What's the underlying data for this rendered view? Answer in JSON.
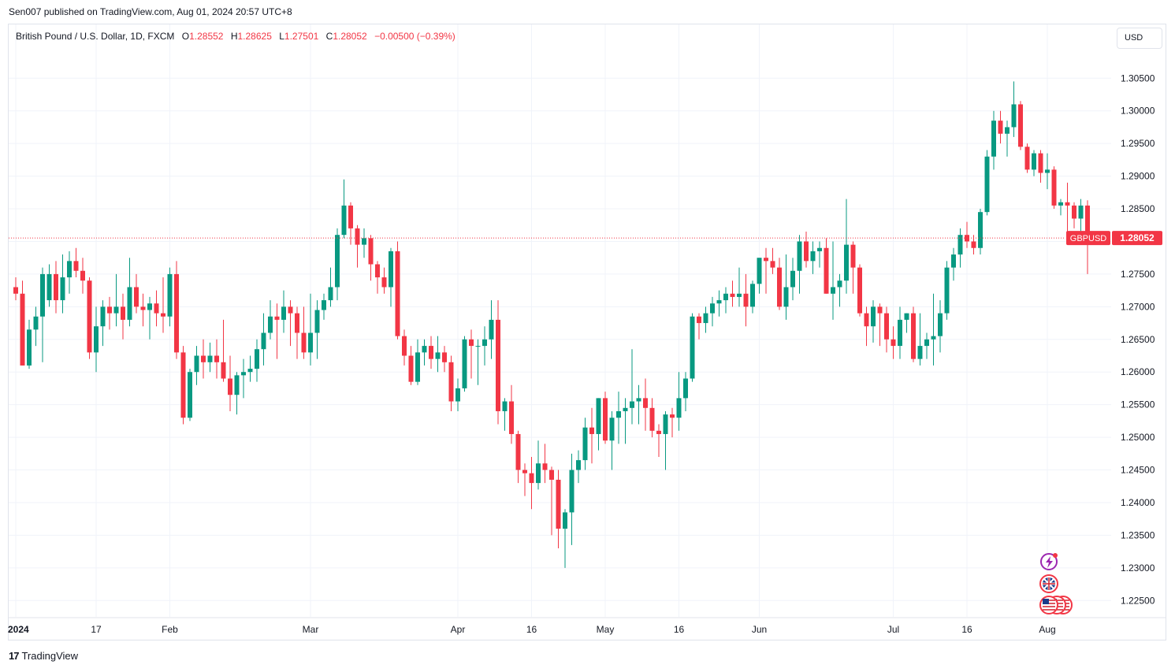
{
  "publisher": "Sen007 published on TradingView.com, Aug 01, 2024 20:57 UTC+8",
  "legend": {
    "symbol": "British Pound / U.S. Dollar, 1D, FXCM",
    "open_label": "O",
    "open": "1.28552",
    "high_label": "H",
    "high": "1.28625",
    "low_label": "L",
    "low": "1.27501",
    "close_label": "C",
    "close": "1.28052",
    "change": "−0.00500 (−0.39%)"
  },
  "currency": "USD",
  "footer": {
    "brand": "TradingView",
    "logo_mark": "17"
  },
  "colors": {
    "up": "#089981",
    "down": "#f23645",
    "grid": "#f0f3fa",
    "axis_text": "#131722",
    "price_line": "#f23645"
  },
  "icons": [
    "lightning-event-icon",
    "uk-flag-icon",
    "us-flag-icon"
  ],
  "chart_data": {
    "type": "candlestick",
    "symbol_tag": "GBPUSD",
    "last_price": 1.28052,
    "ylim": [
      1.2225,
      1.3095
    ],
    "y_ticks": [
      1.305,
      1.3,
      1.295,
      1.29,
      1.285,
      1.28,
      1.275,
      1.27,
      1.265,
      1.26,
      1.255,
      1.25,
      1.245,
      1.24,
      1.235,
      1.23,
      1.225
    ],
    "y_tick_labels": [
      "1.30500",
      "1.30000",
      "1.29500",
      "1.29000",
      "1.28500",
      "1.28000",
      "1.27500",
      "1.27000",
      "1.26500",
      "1.26000",
      "1.25500",
      "1.25000",
      "1.24500",
      "1.24000",
      "1.23500",
      "1.23000",
      "1.22500"
    ],
    "x_ticks": [
      {
        "label": "2024",
        "bar": 0,
        "bold": true
      },
      {
        "label": "17",
        "bar": 12
      },
      {
        "label": "Feb",
        "bar": 23
      },
      {
        "label": "Mar",
        "bar": 44
      },
      {
        "label": "Apr",
        "bar": 66
      },
      {
        "label": "16",
        "bar": 77
      },
      {
        "label": "May",
        "bar": 88
      },
      {
        "label": "16",
        "bar": 99
      },
      {
        "label": "Jun",
        "bar": 111
      },
      {
        "label": "Jul",
        "bar": 131
      },
      {
        "label": "16",
        "bar": 142
      },
      {
        "label": "Aug",
        "bar": 154
      }
    ],
    "grid": true,
    "candles": [
      [
        1.273,
        1.2745,
        1.271,
        1.272
      ],
      [
        1.272,
        1.274,
        1.261,
        1.261
      ],
      [
        1.261,
        1.268,
        1.2605,
        1.2665
      ],
      [
        1.2665,
        1.27,
        1.264,
        1.2685
      ],
      [
        1.2685,
        1.276,
        1.2615,
        1.275
      ],
      [
        1.271,
        1.2765,
        1.27,
        1.275
      ],
      [
        1.275,
        1.277,
        1.269,
        1.271
      ],
      [
        1.271,
        1.278,
        1.269,
        1.2745
      ],
      [
        1.2745,
        1.2785,
        1.272,
        1.277
      ],
      [
        1.277,
        1.279,
        1.2745,
        1.2755
      ],
      [
        1.2755,
        1.2775,
        1.272,
        1.274
      ],
      [
        1.274,
        1.2745,
        1.262,
        1.263
      ],
      [
        1.263,
        1.27,
        1.26,
        1.267
      ],
      [
        1.267,
        1.271,
        1.264,
        1.27
      ],
      [
        1.27,
        1.2715,
        1.2665,
        1.269
      ],
      [
        1.269,
        1.275,
        1.267,
        1.27
      ],
      [
        1.27,
        1.272,
        1.265,
        1.268
      ],
      [
        1.268,
        1.2775,
        1.267,
        1.273
      ],
      [
        1.273,
        1.275,
        1.269,
        1.27
      ],
      [
        1.27,
        1.272,
        1.267,
        1.2695
      ],
      [
        1.2695,
        1.2715,
        1.265,
        1.2705
      ],
      [
        1.2705,
        1.2725,
        1.267,
        1.269
      ],
      [
        1.269,
        1.2745,
        1.266,
        1.2685
      ],
      [
        1.2685,
        1.276,
        1.267,
        1.275
      ],
      [
        1.275,
        1.277,
        1.262,
        1.263
      ],
      [
        1.263,
        1.264,
        1.252,
        1.253
      ],
      [
        1.253,
        1.2605,
        1.2525,
        1.26
      ],
      [
        1.26,
        1.264,
        1.258,
        1.2625
      ],
      [
        1.2625,
        1.265,
        1.259,
        1.2615
      ],
      [
        1.2615,
        1.2645,
        1.26,
        1.2625
      ],
      [
        1.2625,
        1.265,
        1.259,
        1.2615
      ],
      [
        1.2615,
        1.268,
        1.2585,
        1.259
      ],
      [
        1.259,
        1.2625,
        1.254,
        1.2565
      ],
      [
        1.2565,
        1.26,
        1.2535,
        1.2595
      ],
      [
        1.2595,
        1.262,
        1.256,
        1.26
      ],
      [
        1.26,
        1.2625,
        1.2585,
        1.2605
      ],
      [
        1.2605,
        1.265,
        1.2585,
        1.2635
      ],
      [
        1.2635,
        1.269,
        1.261,
        1.266
      ],
      [
        1.266,
        1.271,
        1.265,
        1.2685
      ],
      [
        1.2685,
        1.2705,
        1.262,
        1.268
      ],
      [
        1.268,
        1.2725,
        1.266,
        1.27
      ],
      [
        1.27,
        1.271,
        1.264,
        1.269
      ],
      [
        1.269,
        1.27,
        1.262,
        1.266
      ],
      [
        1.266,
        1.27,
        1.262,
        1.263
      ],
      [
        1.263,
        1.272,
        1.261,
        1.266
      ],
      [
        1.266,
        1.271,
        1.262,
        1.2695
      ],
      [
        1.2695,
        1.272,
        1.268,
        1.271
      ],
      [
        1.271,
        1.276,
        1.27,
        1.273
      ],
      [
        1.273,
        1.282,
        1.271,
        1.281
      ],
      [
        1.281,
        1.2895,
        1.2805,
        1.2855
      ],
      [
        1.2855,
        1.286,
        1.2795,
        1.282
      ],
      [
        1.282,
        1.2825,
        1.276,
        1.2795
      ],
      [
        1.2795,
        1.282,
        1.2775,
        1.2805
      ],
      [
        1.2805,
        1.281,
        1.274,
        1.2765
      ],
      [
        1.2765,
        1.277,
        1.272,
        1.2745
      ],
      [
        1.2745,
        1.276,
        1.272,
        1.273
      ],
      [
        1.273,
        1.279,
        1.27,
        1.2785
      ],
      [
        1.2785,
        1.28,
        1.265,
        1.2655
      ],
      [
        1.2655,
        1.2665,
        1.261,
        1.2625
      ],
      [
        1.2625,
        1.264,
        1.258,
        1.2585
      ],
      [
        1.2585,
        1.265,
        1.258,
        1.263
      ],
      [
        1.263,
        1.265,
        1.261,
        1.264
      ],
      [
        1.264,
        1.2655,
        1.2605,
        1.262
      ],
      [
        1.262,
        1.2655,
        1.26,
        1.263
      ],
      [
        1.263,
        1.264,
        1.26,
        1.2615
      ],
      [
        1.2615,
        1.2625,
        1.254,
        1.2555
      ],
      [
        1.2555,
        1.259,
        1.254,
        1.2575
      ],
      [
        1.2575,
        1.2655,
        1.257,
        1.265
      ],
      [
        1.265,
        1.2665,
        1.259,
        1.264
      ],
      [
        1.264,
        1.265,
        1.258,
        1.264
      ],
      [
        1.264,
        1.267,
        1.261,
        1.265
      ],
      [
        1.265,
        1.271,
        1.262,
        1.268
      ],
      [
        1.268,
        1.271,
        1.252,
        1.254
      ],
      [
        1.254,
        1.256,
        1.251,
        1.2555
      ],
      [
        1.2555,
        1.258,
        1.249,
        1.2505
      ],
      [
        1.2505,
        1.251,
        1.243,
        1.245
      ],
      [
        1.245,
        1.246,
        1.241,
        1.2445
      ],
      [
        1.2445,
        1.247,
        1.239,
        1.243
      ],
      [
        1.243,
        1.2495,
        1.242,
        1.246
      ],
      [
        1.246,
        1.249,
        1.243,
        1.245
      ],
      [
        1.245,
        1.2455,
        1.235,
        1.2435
      ],
      [
        1.2435,
        1.245,
        1.233,
        1.236
      ],
      [
        1.236,
        1.239,
        1.23,
        1.2385
      ],
      [
        1.2385,
        1.2475,
        1.2335,
        1.245
      ],
      [
        1.245,
        1.248,
        1.243,
        1.2465
      ],
      [
        1.2465,
        1.253,
        1.245,
        1.2515
      ],
      [
        1.2515,
        1.2545,
        1.246,
        1.2505
      ],
      [
        1.2505,
        1.256,
        1.248,
        1.256
      ],
      [
        1.256,
        1.257,
        1.249,
        1.2495
      ],
      [
        1.2495,
        1.254,
        1.245,
        1.253
      ],
      [
        1.253,
        1.257,
        1.249,
        1.254
      ],
      [
        1.254,
        1.256,
        1.249,
        1.2545
      ],
      [
        1.2545,
        1.2635,
        1.252,
        1.2555
      ],
      [
        1.2555,
        1.258,
        1.252,
        1.256
      ],
      [
        1.256,
        1.259,
        1.251,
        1.2545
      ],
      [
        1.2545,
        1.256,
        1.25,
        1.251
      ],
      [
        1.251,
        1.252,
        1.247,
        1.2505
      ],
      [
        1.2505,
        1.254,
        1.245,
        1.2535
      ],
      [
        1.2535,
        1.2545,
        1.25,
        1.253
      ],
      [
        1.253,
        1.26,
        1.251,
        1.256
      ],
      [
        1.256,
        1.26,
        1.254,
        1.259
      ],
      [
        1.259,
        1.269,
        1.2585,
        1.2685
      ],
      [
        1.2685,
        1.269,
        1.265,
        1.2675
      ],
      [
        1.2675,
        1.27,
        1.266,
        1.269
      ],
      [
        1.269,
        1.2715,
        1.267,
        1.2705
      ],
      [
        1.2705,
        1.2725,
        1.2685,
        1.271
      ],
      [
        1.271,
        1.273,
        1.269,
        1.272
      ],
      [
        1.272,
        1.274,
        1.27,
        1.2715
      ],
      [
        1.2715,
        1.276,
        1.27,
        1.272
      ],
      [
        1.272,
        1.275,
        1.267,
        1.27
      ],
      [
        1.27,
        1.274,
        1.269,
        1.2735
      ],
      [
        1.2735,
        1.277,
        1.272,
        1.2775
      ],
      [
        1.2775,
        1.279,
        1.272,
        1.277
      ],
      [
        1.277,
        1.279,
        1.275,
        1.276
      ],
      [
        1.276,
        1.2775,
        1.2695,
        1.27
      ],
      [
        1.27,
        1.278,
        1.268,
        1.273
      ],
      [
        1.273,
        1.2775,
        1.271,
        1.2755
      ],
      [
        1.2755,
        1.281,
        1.272,
        1.28
      ],
      [
        1.28,
        1.2815,
        1.276,
        1.277
      ],
      [
        1.277,
        1.28,
        1.275,
        1.2785
      ],
      [
        1.2785,
        1.28,
        1.276,
        1.279
      ],
      [
        1.279,
        1.2805,
        1.272,
        1.272
      ],
      [
        1.272,
        1.28,
        1.268,
        1.273
      ],
      [
        1.273,
        1.275,
        1.27,
        1.274
      ],
      [
        1.274,
        1.2865,
        1.272,
        1.2795
      ],
      [
        1.2795,
        1.28,
        1.272,
        1.276
      ],
      [
        1.276,
        1.2765,
        1.2685,
        1.269
      ],
      [
        1.269,
        1.27,
        1.264,
        1.267
      ],
      [
        1.267,
        1.271,
        1.2645,
        1.27
      ],
      [
        1.27,
        1.2705,
        1.264,
        1.269
      ],
      [
        1.269,
        1.27,
        1.263,
        1.265
      ],
      [
        1.265,
        1.267,
        1.262,
        1.264
      ],
      [
        1.264,
        1.27,
        1.262,
        1.268
      ],
      [
        1.268,
        1.269,
        1.266,
        1.269
      ],
      [
        1.269,
        1.27,
        1.2615,
        1.262
      ],
      [
        1.262,
        1.269,
        1.261,
        1.264
      ],
      [
        1.264,
        1.266,
        1.262,
        1.265
      ],
      [
        1.265,
        1.272,
        1.261,
        1.2655
      ],
      [
        1.2655,
        1.271,
        1.263,
        1.269
      ],
      [
        1.269,
        1.277,
        1.268,
        1.276
      ],
      [
        1.276,
        1.279,
        1.274,
        1.278
      ],
      [
        1.278,
        1.282,
        1.276,
        1.281
      ],
      [
        1.281,
        1.283,
        1.279,
        1.28
      ],
      [
        1.28,
        1.281,
        1.278,
        1.279
      ],
      [
        1.279,
        1.285,
        1.278,
        1.2845
      ],
      [
        1.2845,
        1.294,
        1.284,
        1.293
      ],
      [
        1.293,
        1.3,
        1.291,
        1.2985
      ],
      [
        1.2985,
        1.3,
        1.295,
        1.2965
      ],
      [
        1.2965,
        1.2985,
        1.293,
        1.2975
      ],
      [
        1.2975,
        1.3045,
        1.296,
        1.301
      ],
      [
        1.301,
        1.3015,
        1.294,
        1.2945
      ],
      [
        1.2945,
        1.295,
        1.2905,
        1.291
      ],
      [
        1.291,
        1.294,
        1.29,
        1.2935
      ],
      [
        1.2935,
        1.294,
        1.289,
        1.2905
      ],
      [
        1.2905,
        1.2935,
        1.288,
        1.291
      ],
      [
        1.291,
        1.2915,
        1.285,
        1.2855
      ],
      [
        1.2855,
        1.2865,
        1.284,
        1.286
      ],
      [
        1.286,
        1.289,
        1.281,
        1.2855
      ],
      [
        1.2855,
        1.286,
        1.282,
        1.2835
      ],
      [
        1.2835,
        1.2865,
        1.281,
        1.2855
      ],
      [
        1.2855,
        1.2863,
        1.275,
        1.2805
      ]
    ]
  }
}
